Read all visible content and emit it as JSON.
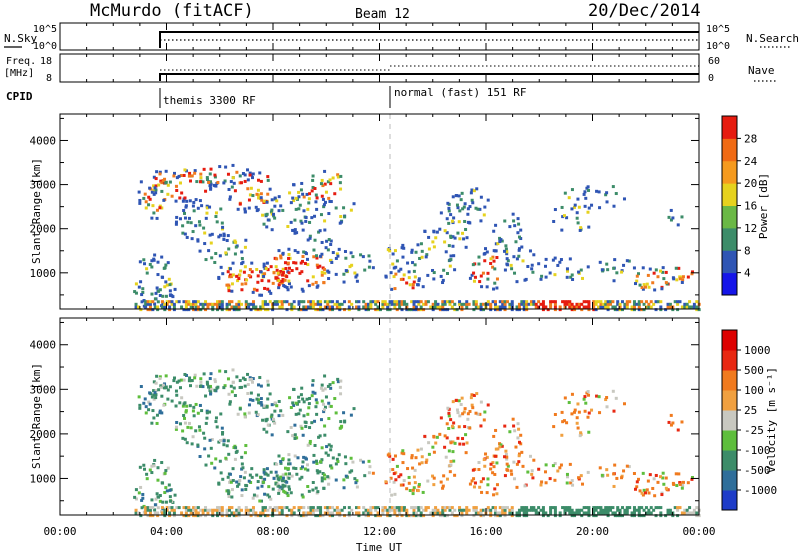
{
  "header": {
    "station": "McMurdo (fitACF)",
    "beam": "Beam 12",
    "date": "20/Dec/2014"
  },
  "info_panels": {
    "nsky": {
      "left_label": "N.Sky",
      "left_ticks": [
        "10^5",
        "10^0"
      ],
      "right_label": "N.Search",
      "right_ticks": [
        "10^5",
        "10^0"
      ]
    },
    "freq": {
      "left_label_1": "Freq.",
      "left_label_2": "[MHz]",
      "left_ticks": [
        "18",
        "8"
      ],
      "right_label": "Nave",
      "right_ticks": [
        "60",
        "0"
      ]
    },
    "cpid": {
      "label": "CPID",
      "modes": [
        "themis 3300 RF",
        "normal (fast) 151 RF"
      ]
    }
  },
  "chart_data": [
    {
      "type": "heatmap",
      "name": "power",
      "ylabel": "Slant Range [km]",
      "yticks": [
        "1000",
        "2000",
        "3000",
        "4000"
      ],
      "ylim": [
        180,
        4600
      ],
      "xlim_hours": [
        0,
        24
      ],
      "colorbar_label": "Power [dB]",
      "colorbar_ticks": [
        "4",
        "8",
        "12",
        "16",
        "20",
        "24",
        "28"
      ],
      "colorbar_colors": [
        "#1515e8",
        "#2f55b4",
        "#3c8c69",
        "#6ab845",
        "#e6d21e",
        "#f59a1e",
        "#f06a14",
        "#e61c10"
      ]
    },
    {
      "type": "heatmap",
      "name": "velocity",
      "ylabel": "Slant Range [km]",
      "yticks": [
        "1000",
        "2000",
        "3000",
        "4000"
      ],
      "ylim": [
        180,
        4600
      ],
      "xlim_hours": [
        0,
        24
      ],
      "colorbar_label": "Velocity [m s⁻¹]",
      "colorbar_ticks": [
        "1000",
        "500",
        "100",
        "25",
        "-25",
        "-100",
        "-500",
        "-1000"
      ],
      "colorbar_colors": [
        "#1e3cc8",
        "#2f6e9a",
        "#3c8c69",
        "#5ebe3c",
        "#c8c8c0",
        "#f0a040",
        "#f07a1e",
        "#e82812",
        "#dd0000"
      ],
      "xticks": [
        "00:00",
        "04:00",
        "08:00",
        "12:00",
        "16:00",
        "20:00",
        "00:00"
      ],
      "xlabel": "Time UT"
    }
  ],
  "colors": {
    "power_red": "#e61c10",
    "power_orange": "#f07a1e",
    "power_yellow": "#e6d21e",
    "power_green": "#3c8c69",
    "power_blue": "#2f55b4",
    "vel_green": "#3c8c69",
    "vel_orange": "#f07a1e",
    "vel_grey": "#c8c8c0"
  }
}
